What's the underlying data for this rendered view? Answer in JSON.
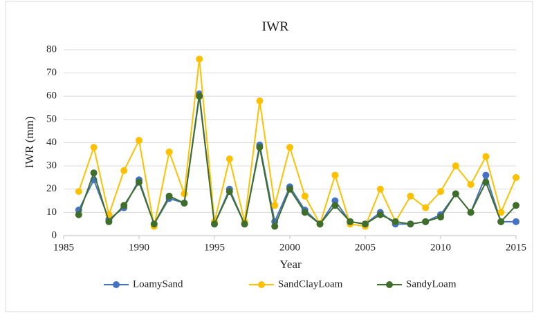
{
  "chart_data": {
    "type": "line",
    "title": "IWR",
    "x_label": "Year",
    "y_label": "IWR (mm)",
    "x": [
      1986,
      1987,
      1988,
      1989,
      1990,
      1991,
      1992,
      1993,
      1994,
      1995,
      1996,
      1997,
      1998,
      1999,
      2000,
      2001,
      2002,
      2003,
      2004,
      2005,
      2006,
      2007,
      2008,
      2009,
      2010,
      2011,
      2012,
      2013,
      2014,
      2015
    ],
    "series": [
      {
        "name": "LoamySand",
        "color": "#4472c4",
        "values": [
          11,
          24,
          7,
          12,
          24,
          5,
          16,
          14,
          61,
          5,
          20,
          5,
          39,
          6,
          21,
          11,
          5,
          15,
          6,
          5,
          10,
          5,
          5,
          6,
          9,
          18,
          10,
          26,
          6,
          6
        ]
      },
      {
        "name": "SandClayLoam",
        "color": "#ffc000",
        "values": [
          19,
          38,
          9,
          28,
          41,
          4,
          36,
          18,
          76,
          6,
          33,
          6,
          58,
          13,
          38,
          17,
          5,
          26,
          5,
          4,
          20,
          6,
          17,
          12,
          19,
          30,
          22,
          34,
          10,
          25
        ]
      },
      {
        "name": "SandyLoam",
        "color": "#3f6e2a",
        "values": [
          9,
          27,
          6,
          13,
          23,
          5,
          17,
          14,
          60,
          5,
          19,
          5,
          38,
          4,
          20,
          10,
          5,
          13,
          6,
          5,
          9,
          6,
          5,
          6,
          8,
          18,
          10,
          23,
          6,
          13
        ]
      }
    ],
    "xlim": [
      1985,
      2015
    ],
    "xticks": [
      1985,
      1990,
      1995,
      2000,
      2005,
      2010,
      2015
    ],
    "ylim": [
      0,
      80
    ],
    "yticks": [
      0,
      10,
      20,
      30,
      40,
      50,
      60,
      70,
      80
    ],
    "grid": true,
    "legend": "bottom"
  }
}
